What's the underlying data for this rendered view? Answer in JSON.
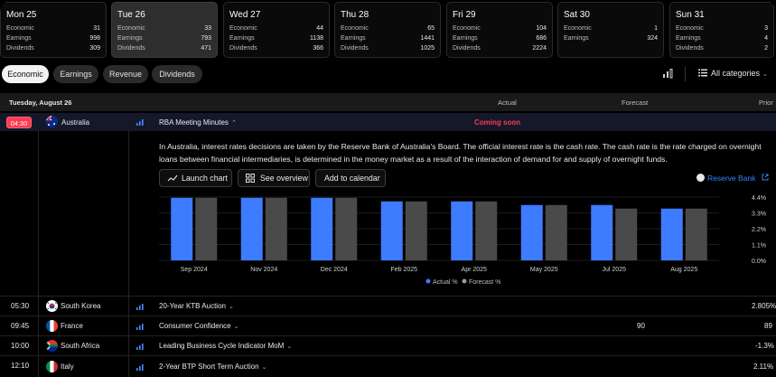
{
  "days": [
    {
      "name": "Mon 25",
      "economic": "31",
      "earnings": "998",
      "dividends": "309",
      "active": false
    },
    {
      "name": "Tue 26",
      "economic": "33",
      "earnings": "793",
      "dividends": "471",
      "active": true
    },
    {
      "name": "Wed 27",
      "economic": "44",
      "earnings": "1138",
      "dividends": "366",
      "active": false
    },
    {
      "name": "Thu 28",
      "economic": "65",
      "earnings": "1441",
      "dividends": "1025",
      "active": false
    },
    {
      "name": "Fri 29",
      "economic": "104",
      "earnings": "686",
      "dividends": "2224",
      "active": false
    },
    {
      "name": "Sat 30",
      "economic": "1",
      "earnings": "324",
      "dividends": "",
      "active": false
    },
    {
      "name": "Sun 31",
      "economic": "3",
      "earnings": "4",
      "dividends": "2",
      "active": false
    }
  ],
  "day_labels": {
    "economic": "Economic",
    "earnings": "Earnings",
    "dividends": "Dividends"
  },
  "filters": {
    "economic": "Economic",
    "earnings": "Earnings",
    "revenue": "Revenue",
    "dividends": "Dividends",
    "categories": "All categories"
  },
  "header": {
    "date": "Tuesday, August 26",
    "actual": "Actual",
    "forecast": "Forecast",
    "prior": "Prior"
  },
  "main_event": {
    "time": "04:30",
    "country": "Australia",
    "title": "RBA Meeting Minutes",
    "status": "Coming soon",
    "description": "In Australia, interest rates decisions are taken by the Reserve Bank of Australia's Board. The official interest rate is the cash rate. The cash rate is the rate charged on overnight loans between financial intermediaries, is determined in the money market as a result of the interaction of demand for and supply of overnight funds.",
    "buttons": {
      "launch": "Launch chart",
      "overview": "See overview",
      "calendar": "Add to calendar"
    },
    "source": "Reserve Bank"
  },
  "chart_data": {
    "type": "bar",
    "categories": [
      "Sep 2024",
      "Nov 2024",
      "Dec 2024",
      "Feb 2025",
      "Apr 2025",
      "May 2025",
      "Jul 2025",
      "Aug 2025"
    ],
    "series": [
      {
        "name": "Actual %",
        "color": "#3d7bff",
        "values": [
          4.35,
          4.35,
          4.35,
          4.1,
          4.1,
          3.85,
          3.85,
          3.6
        ]
      },
      {
        "name": "Forecast %",
        "color": "#4a4a4a",
        "values": [
          4.35,
          4.35,
          4.35,
          4.1,
          4.1,
          3.85,
          3.6,
          3.6
        ]
      }
    ],
    "yticks": [
      "4.4%",
      "3.3%",
      "2.2%",
      "1.1%",
      "0.0%"
    ],
    "ylim": [
      0,
      4.4
    ],
    "legend": "bottom-center"
  },
  "rows": [
    {
      "time": "05:30",
      "country": "South Korea",
      "event": "20-Year KTB Auction",
      "actual": "",
      "forecast": "",
      "prior": "2.805%"
    },
    {
      "time": "09:45",
      "country": "France",
      "event": "Consumer Confidence",
      "actual": "",
      "forecast": "90",
      "prior": "89"
    },
    {
      "time": "10:00",
      "country": "South Africa",
      "event": "Leading Business Cycle Indicator MoM",
      "actual": "",
      "forecast": "",
      "prior": "-1.3%"
    },
    {
      "time": "12:10",
      "country": "Italy",
      "event": "2-Year BTP Short Term Auction",
      "actual": "",
      "forecast": "",
      "prior": "2.11%"
    }
  ]
}
